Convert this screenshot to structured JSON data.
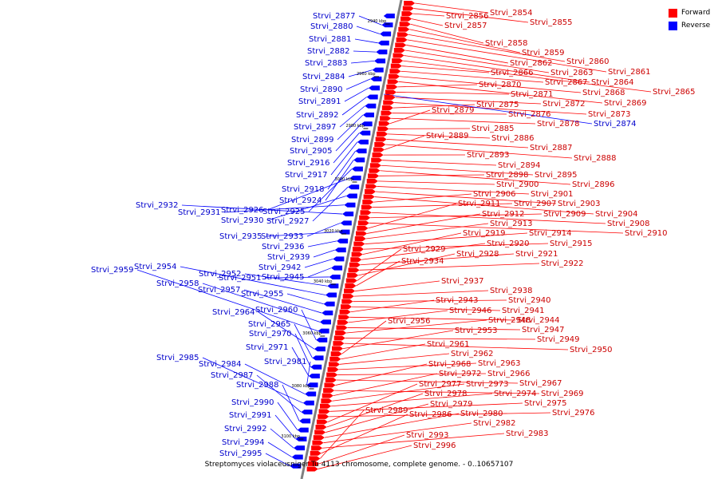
{
  "legend": {
    "forward_label": "Forward",
    "reverse_label": "Reverse",
    "forward_color": "#ff0000",
    "reverse_color": "#0000ff"
  },
  "caption": "Streptomyces violaceusniger Tu 4113 chromosome, complete genome. - 0..10657107",
  "colors": {
    "axis": "#808080",
    "text_forward": "#cc0000",
    "text_reverse": "#0000cc"
  },
  "scale_ticks": [
    "2940 kbp",
    "2960 kbp",
    "2980 kbp",
    "3000 kbp",
    "3020 kbp",
    "3040 kbp",
    "3060 kbp",
    "3080 kbp",
    "3100 kbp"
  ],
  "forward_genes": [
    "Strvi_2854",
    "Strvi_2855",
    "Strvi_2856",
    "Strvi_2857",
    "Strvi_2858",
    "Strvi_2859",
    "Strvi_2860",
    "Strvi_2861",
    "Strvi_2862",
    "Strvi_2863",
    "Strvi_2864",
    "Strvi_2865",
    "Strvi_2866",
    "Strvi_2867",
    "Strvi_2868",
    "Strvi_2869",
    "Strvi_2870",
    "Strvi_2871",
    "Strvi_2872",
    "Strvi_2873",
    "Strvi_2875",
    "Strvi_2876",
    "Strvi_2878",
    "Strvi_2879",
    "Strvi_2885",
    "Strvi_2886",
    "Strvi_2887",
    "Strvi_2888",
    "Strvi_2889",
    "Strvi_2893",
    "Strvi_2894",
    "Strvi_2895",
    "Strvi_2896",
    "Strvi_2898",
    "Strvi_2900",
    "Strvi_2901",
    "Strvi_2903",
    "Strvi_2904",
    "Strvi_2906",
    "Strvi_2907",
    "Strvi_2908",
    "Strvi_2909",
    "Strvi_2910",
    "Strvi_2911",
    "Strvi_2912",
    "Strvi_2913",
    "Strvi_2914",
    "Strvi_2915",
    "Strvi_2919",
    "Strvi_2920",
    "Strvi_2921",
    "Strvi_2922",
    "Strvi_2928",
    "Strvi_2929",
    "Strvi_2934",
    "Strvi_2937",
    "Strvi_2938",
    "Strvi_2940",
    "Strvi_2941",
    "Strvi_2943",
    "Strvi_2944",
    "Strvi_2946",
    "Strvi_2947",
    "Strvi_2948",
    "Strvi_2949",
    "Strvi_2950",
    "Strvi_2953",
    "Strvi_2956",
    "Strvi_2961",
    "Strvi_2962",
    "Strvi_2963",
    "Strvi_2966",
    "Strvi_2967",
    "Strvi_2968",
    "Strvi_2969",
    "Strvi_2972",
    "Strvi_2973",
    "Strvi_2974",
    "Strvi_2975",
    "Strvi_2976",
    "Strvi_2977",
    "Strvi_2978",
    "Strvi_2979",
    "Strvi_2980",
    "Strvi_2982",
    "Strvi_2983",
    "Strvi_2986",
    "Strvi_2989",
    "Strvi_2993",
    "Strvi_2996"
  ],
  "reverse_genes": [
    "Strvi_2874",
    "Strvi_2877",
    "Strvi_2880",
    "Strvi_2881",
    "Strvi_2882",
    "Strvi_2883",
    "Strvi_2884",
    "Strvi_2890",
    "Strvi_2891",
    "Strvi_2892",
    "Strvi_2897",
    "Strvi_2899",
    "Strvi_2905",
    "Strvi_2916",
    "Strvi_2917",
    "Strvi_2918",
    "Strvi_2924",
    "Strvi_2925",
    "Strvi_2926",
    "Strvi_2927",
    "Strvi_2930",
    "Strvi_2931",
    "Strvi_2932",
    "Strvi_2933",
    "Strvi_2935",
    "Strvi_2936",
    "Strvi_2939",
    "Strvi_2942",
    "Strvi_2945",
    "Strvi_2951",
    "Strvi_2952",
    "Strvi_2954",
    "Strvi_2955",
    "Strvi_2957",
    "Strvi_2958",
    "Strvi_2959",
    "Strvi_2960",
    "Strvi_2964",
    "Strvi_2965",
    "Strvi_2970",
    "Strvi_2971",
    "Strvi_2981",
    "Strvi_2984",
    "Strvi_2985",
    "Strvi_2987",
    "Strvi_2988",
    "Strvi_2990",
    "Strvi_2991",
    "Strvi_2992",
    "Strvi_2994",
    "Strvi_2995"
  ]
}
